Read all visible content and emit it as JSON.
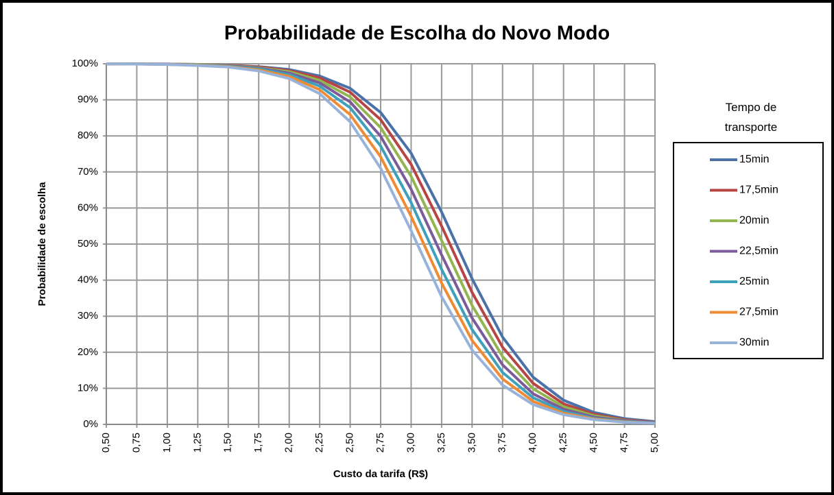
{
  "chart_data": {
    "type": "line",
    "title": "Probabilidade de Escolha do Novo Modo",
    "x_label": "Custo da tarifa (R$)",
    "y_label": "Probabilidade de escolha",
    "legend_title": "Tempo de transporte",
    "legend_position": "right",
    "grid": true,
    "x": [
      0.5,
      0.75,
      1.0,
      1.25,
      1.5,
      1.75,
      2.0,
      2.25,
      2.5,
      2.75,
      3.0,
      3.25,
      3.5,
      3.75,
      4.0,
      4.25,
      4.5,
      4.75,
      5.0
    ],
    "xlim": [
      0.5,
      5.0
    ],
    "xticks": [
      {
        "value": 0.5,
        "label": "0,50"
      },
      {
        "value": 0.75,
        "label": "0,75"
      },
      {
        "value": 1.0,
        "label": "1,00"
      },
      {
        "value": 1.25,
        "label": "1,25"
      },
      {
        "value": 1.5,
        "label": "1,50"
      },
      {
        "value": 1.75,
        "label": "1,75"
      },
      {
        "value": 2.0,
        "label": "2,00"
      },
      {
        "value": 2.25,
        "label": "2,25"
      },
      {
        "value": 2.5,
        "label": "2,50"
      },
      {
        "value": 2.75,
        "label": "2,75"
      },
      {
        "value": 3.0,
        "label": "3,00"
      },
      {
        "value": 3.25,
        "label": "3,25"
      },
      {
        "value": 3.5,
        "label": "3,50"
      },
      {
        "value": 3.75,
        "label": "3,75"
      },
      {
        "value": 4.0,
        "label": "4,00"
      },
      {
        "value": 4.25,
        "label": "4,25"
      },
      {
        "value": 4.5,
        "label": "4,50"
      },
      {
        "value": 4.75,
        "label": "4,75"
      },
      {
        "value": 5.0,
        "label": "5,00"
      }
    ],
    "ylim": [
      0,
      100
    ],
    "yticks": [
      {
        "value": 0,
        "label": "0%"
      },
      {
        "value": 10,
        "label": "10%"
      },
      {
        "value": 20,
        "label": "20%"
      },
      {
        "value": 30,
        "label": "30%"
      },
      {
        "value": 40,
        "label": "40%"
      },
      {
        "value": 50,
        "label": "50%"
      },
      {
        "value": 60,
        "label": "60%"
      },
      {
        "value": 70,
        "label": "70%"
      },
      {
        "value": 80,
        "label": "80%"
      },
      {
        "value": 90,
        "label": "90%"
      },
      {
        "value": 100,
        "label": "100%"
      }
    ],
    "series": [
      {
        "name": "15min",
        "color": "#4a72a8",
        "values": [
          99.98,
          99.96,
          99.92,
          99.8,
          99.6,
          99.2,
          98.4,
          96.6,
          93.2,
          86.5,
          75.2,
          58.9,
          40.4,
          24.2,
          13.1,
          6.7,
          3.3,
          1.6,
          0.75
        ]
      },
      {
        "name": "17,5min",
        "color": "#b84545",
        "values": [
          99.98,
          99.95,
          99.9,
          99.8,
          99.6,
          99.1,
          98.1,
          96.1,
          92.1,
          84.5,
          72.1,
          55.0,
          36.6,
          21.4,
          11.4,
          5.7,
          2.8,
          1.3,
          0.6
        ]
      },
      {
        "name": "20min",
        "color": "#93b550",
        "values": [
          99.97,
          99.95,
          99.9,
          99.8,
          99.5,
          98.9,
          97.8,
          95.4,
          90.8,
          82.3,
          68.8,
          51.0,
          33.0,
          18.8,
          9.9,
          4.9,
          2.4,
          1.1,
          0.5
        ]
      },
      {
        "name": "22,5min",
        "color": "#7b5b9a",
        "values": [
          99.97,
          99.94,
          99.9,
          99.7,
          99.4,
          98.8,
          97.4,
          94.7,
          89.4,
          79.9,
          65.2,
          47.0,
          29.5,
          16.5,
          8.5,
          4.2,
          2.0,
          1.0,
          0.5
        ]
      },
      {
        "name": "25min",
        "color": "#3fa0bb",
        "values": [
          99.97,
          99.93,
          99.8,
          99.7,
          99.3,
          98.6,
          97.0,
          93.8,
          87.8,
          77.2,
          61.5,
          43.0,
          26.3,
          14.4,
          7.4,
          3.6,
          1.7,
          0.8,
          0.4
        ]
      },
      {
        "name": "27,5min",
        "color": "#ef8b35",
        "values": [
          99.96,
          99.91,
          99.8,
          99.6,
          99.2,
          98.3,
          96.5,
          92.8,
          85.9,
          74.2,
          57.7,
          39.2,
          23.3,
          12.6,
          6.4,
          3.1,
          1.5,
          0.7,
          0.3
        ]
      },
      {
        "name": "30min",
        "color": "#98b3d9",
        "values": [
          99.95,
          99.9,
          99.8,
          99.5,
          99.1,
          98.0,
          95.9,
          91.7,
          83.9,
          71.0,
          53.7,
          35.4,
          20.6,
          10.9,
          5.5,
          2.7,
          1.3,
          0.6,
          0.3
        ]
      }
    ]
  }
}
